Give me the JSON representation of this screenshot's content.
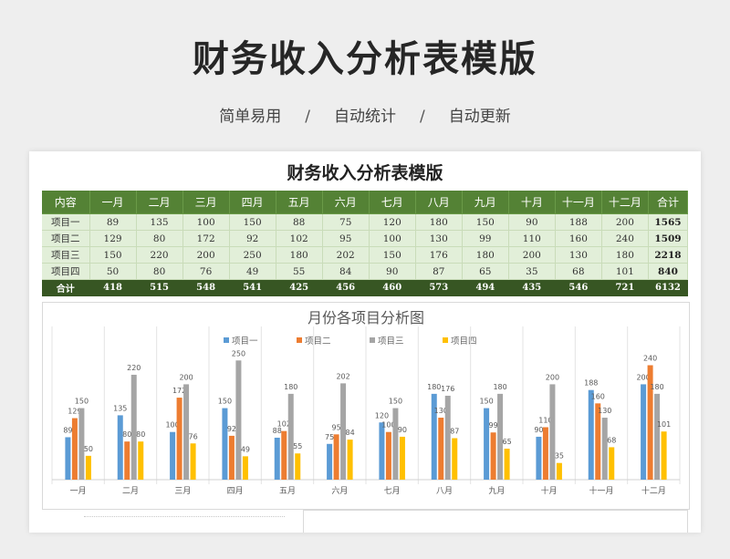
{
  "page": {
    "title": "财务收入分析表模版",
    "subtitle": [
      "简单易用",
      "自动统计",
      "自动更新"
    ],
    "separator": "/"
  },
  "sheet": {
    "title": "财务收入分析表模版",
    "header": [
      "内容",
      "一月",
      "二月",
      "三月",
      "四月",
      "五月",
      "六月",
      "七月",
      "八月",
      "九月",
      "十月",
      "十一月",
      "十二月",
      "合计"
    ],
    "rows": [
      {
        "name": "项目一",
        "values": [
          "89",
          "135",
          "100",
          "150",
          "88",
          "75",
          "120",
          "180",
          "150",
          "90",
          "188",
          "200"
        ],
        "total": "1565"
      },
      {
        "name": "项目二",
        "values": [
          "129",
          "80",
          "172",
          "92",
          "102",
          "95",
          "100",
          "130",
          "99",
          "110",
          "160",
          "240"
        ],
        "total": "1509"
      },
      {
        "name": "项目三",
        "values": [
          "150",
          "220",
          "200",
          "250",
          "180",
          "202",
          "150",
          "176",
          "180",
          "200",
          "130",
          "180"
        ],
        "total": "2218"
      },
      {
        "name": "项目四",
        "values": [
          "50",
          "80",
          "76",
          "49",
          "55",
          "84",
          "90",
          "87",
          "65",
          "35",
          "68",
          "101"
        ],
        "total": "840"
      }
    ],
    "footer": {
      "name": "合计",
      "values": [
        "418",
        "515",
        "548",
        "541",
        "425",
        "456",
        "460",
        "573",
        "494",
        "435",
        "546",
        "721"
      ],
      "total": "6132"
    }
  },
  "chart_data": {
    "type": "bar",
    "title": "月份各项目分析图",
    "categories": [
      "一月",
      "二月",
      "三月",
      "四月",
      "五月",
      "六月",
      "七月",
      "八月",
      "九月",
      "十月",
      "十一月",
      "十二月"
    ],
    "series": [
      {
        "name": "项目一",
        "color": "#5b9bd5",
        "values": [
          89,
          135,
          100,
          150,
          88,
          75,
          120,
          180,
          150,
          90,
          188,
          200
        ]
      },
      {
        "name": "项目二",
        "color": "#ed7d31",
        "values": [
          129,
          80,
          172,
          92,
          102,
          95,
          100,
          130,
          99,
          110,
          160,
          240
        ]
      },
      {
        "name": "项目三",
        "color": "#a5a5a5",
        "values": [
          150,
          220,
          200,
          250,
          180,
          202,
          150,
          176,
          180,
          200,
          130,
          180
        ]
      },
      {
        "name": "项目四",
        "color": "#ffc000",
        "values": [
          50,
          80,
          76,
          49,
          55,
          84,
          90,
          87,
          65,
          35,
          68,
          101
        ]
      }
    ],
    "ylim": [
      0,
      280
    ],
    "legend": "top-center",
    "grid": "vertical category separators",
    "data_labels": true
  }
}
